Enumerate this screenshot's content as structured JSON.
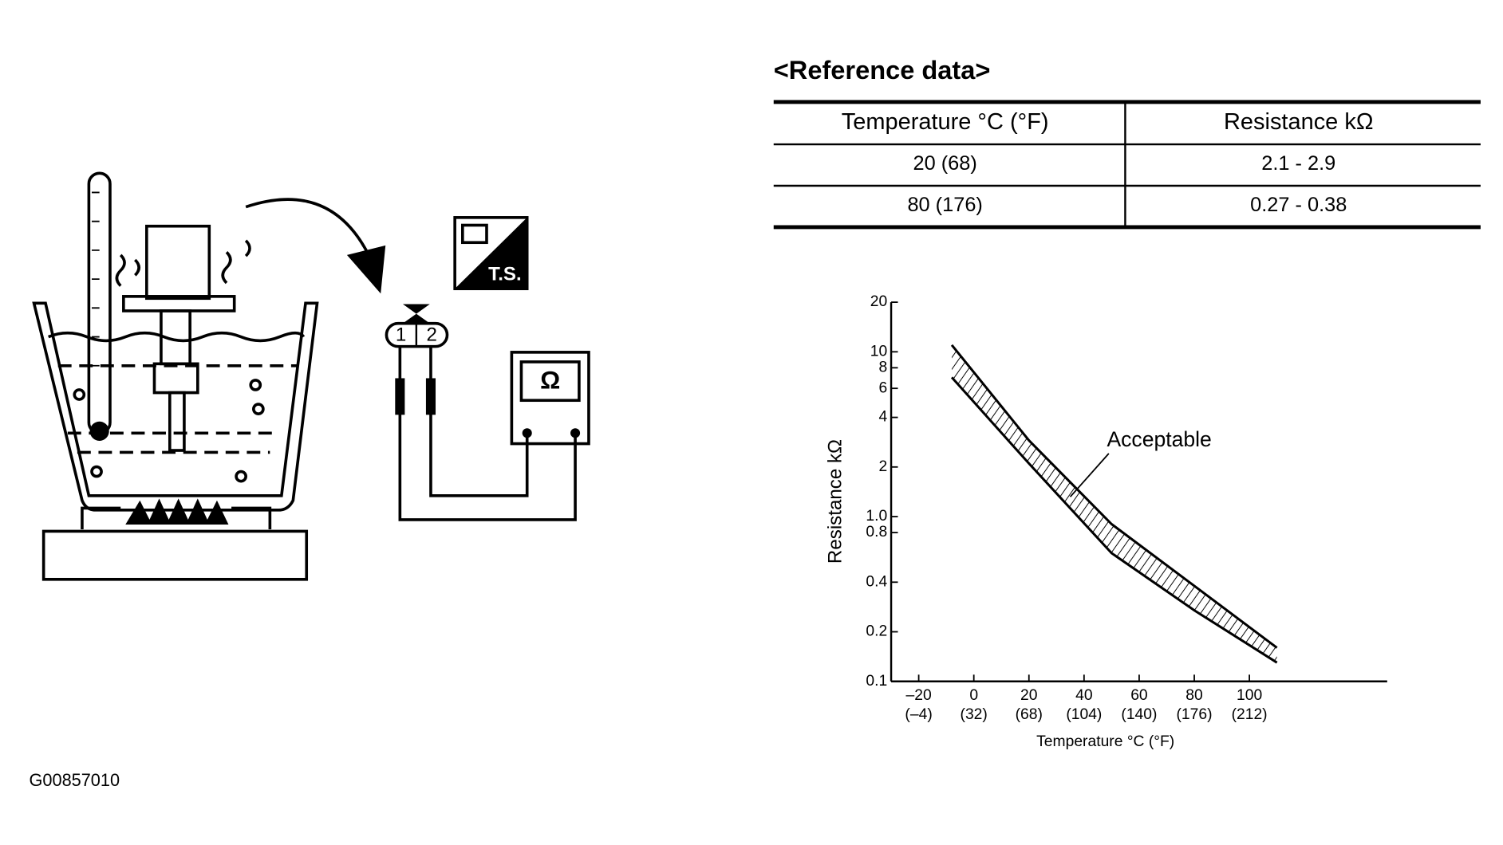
{
  "title": "<Reference data>",
  "table": {
    "header": [
      "Temperature °C (°F)",
      "Resistance kΩ"
    ],
    "rows": [
      [
        "20 (68)",
        "2.1 - 2.9"
      ],
      [
        "80 (176)",
        "0.27 - 0.38"
      ]
    ]
  },
  "illustration": {
    "pins": [
      "1",
      "2"
    ],
    "meter_symbol": "Ω",
    "icon_label": "T.S."
  },
  "figure_code": "G00857010",
  "chart_data": {
    "type": "band",
    "xlabel": "Temperature °C (°F)",
    "ylabel": "Resistance kΩ",
    "annotation": "Acceptable",
    "x": [
      -8,
      20,
      50,
      80,
      110
    ],
    "series": [
      {
        "color": "#000000",
        "values": [
          11,
          2.9,
          0.9,
          0.38,
          0.16
        ]
      },
      {
        "color": "#000000",
        "values": [
          7,
          2.1,
          0.6,
          0.27,
          0.13
        ]
      }
    ],
    "xlim": [
      -30,
      150
    ],
    "xticks": [
      {
        "value": -20,
        "label": "–20 (–4)"
      },
      {
        "value": 0,
        "label": "0 (32)"
      },
      {
        "value": 20,
        "label": "20 (68)"
      },
      {
        "value": 40,
        "label": "40 (104)"
      },
      {
        "value": 60,
        "label": "60 (140)"
      },
      {
        "value": 80,
        "label": "80 (176)"
      },
      {
        "value": 100,
        "label": "100 (212)"
      }
    ],
    "ylim": [
      0.1,
      20
    ],
    "ylog": true,
    "yticks": [
      0.1,
      0.2,
      0.4,
      0.8,
      {
        "value": 1,
        "label": "1.0"
      },
      2,
      4,
      6,
      8,
      10,
      20
    ],
    "grid": false
  }
}
